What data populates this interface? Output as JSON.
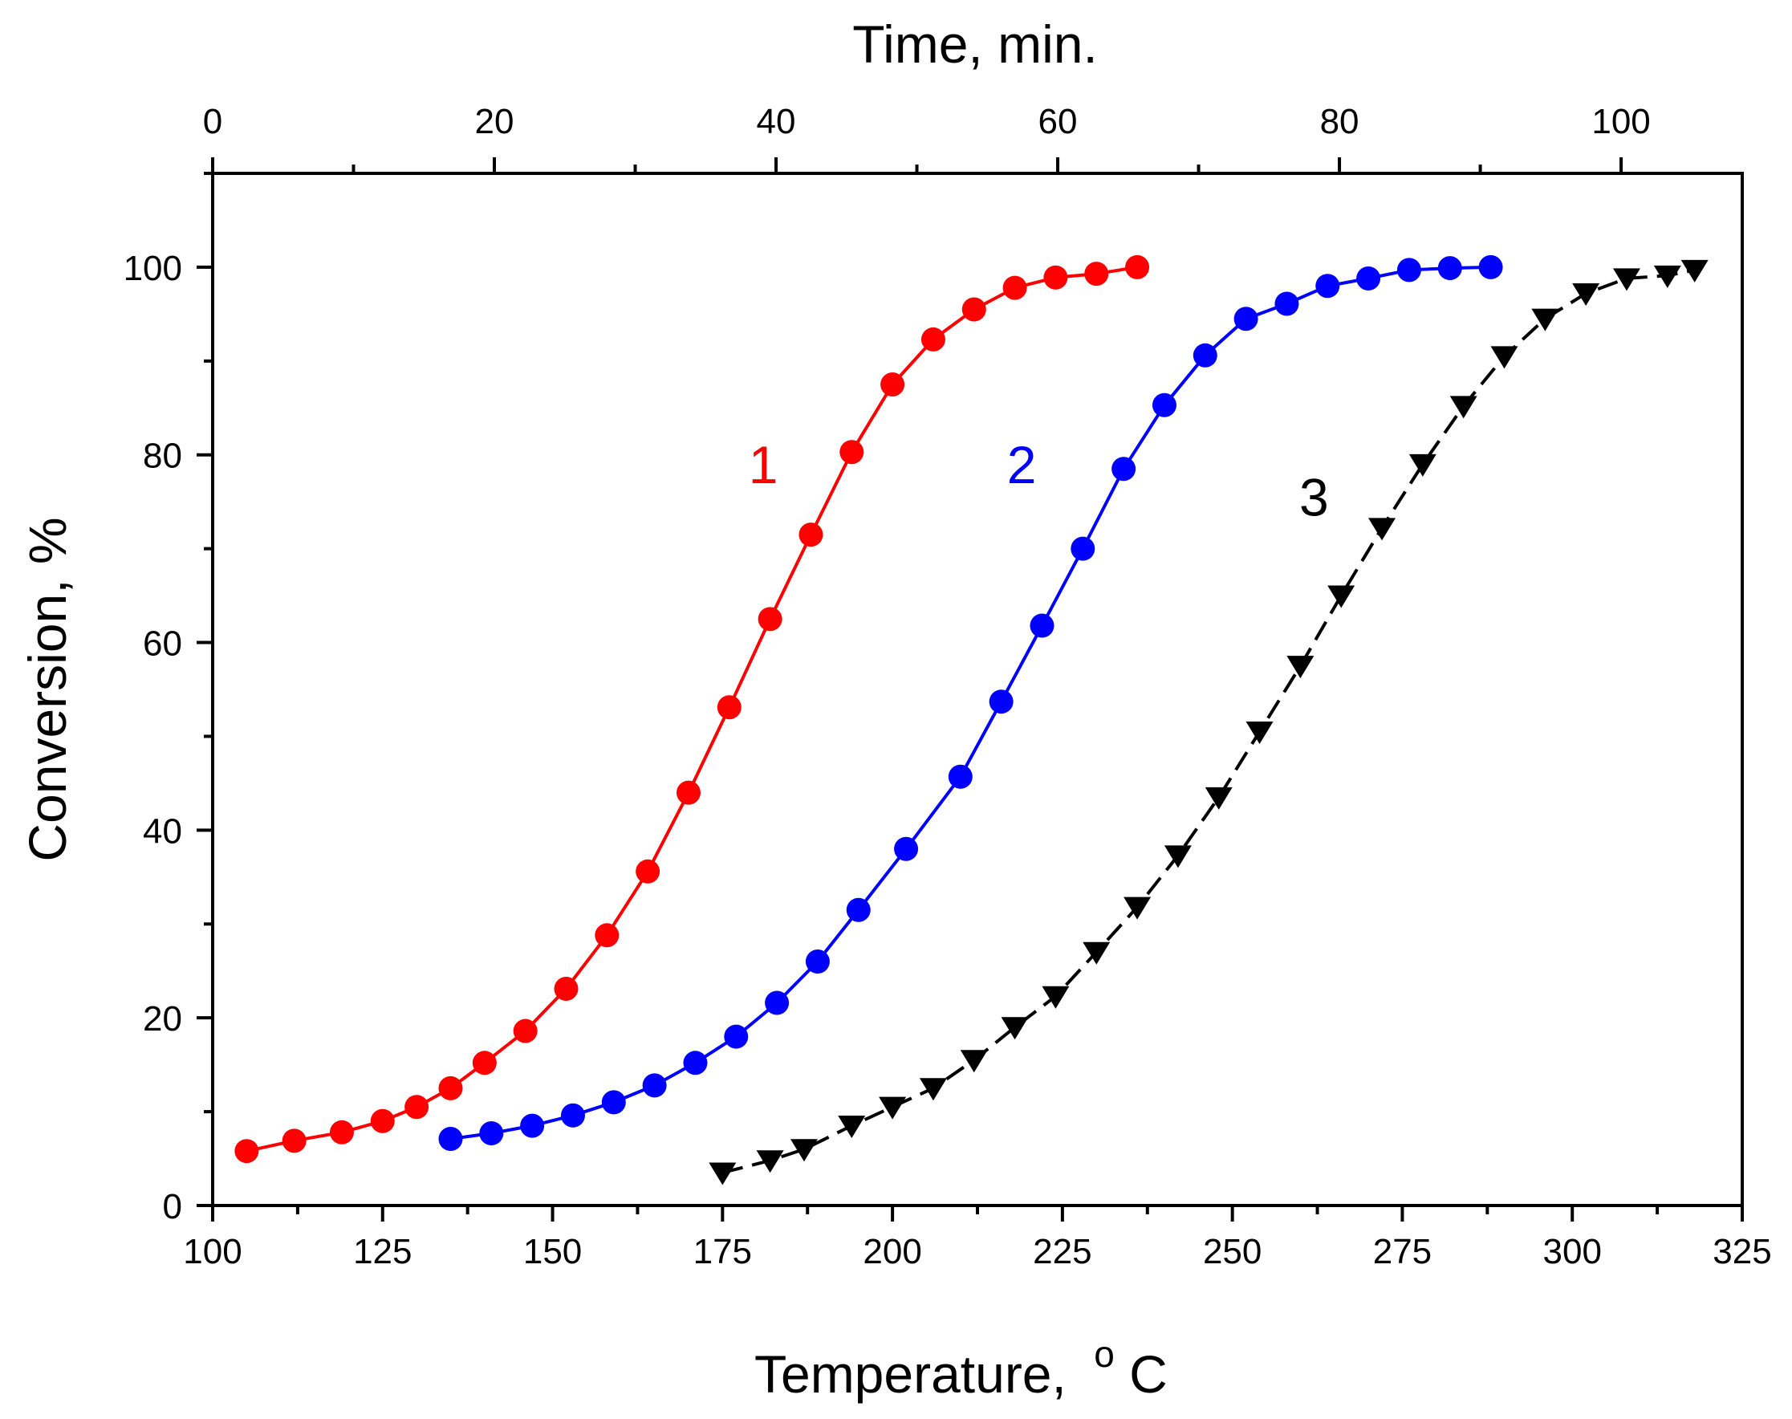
{
  "chart_data": {
    "type": "line",
    "xlabel": "Temperature,",
    "xlabel_unit_sup": "o",
    "xlabel_unit": "C",
    "x2label": "Time, min.",
    "ylabel": "Conversion, %",
    "xlim": [
      100,
      325
    ],
    "ylim": [
      0,
      110
    ],
    "x2lim": [
      0,
      108.6
    ],
    "x_ticks": [
      100,
      125,
      150,
      175,
      200,
      225,
      250,
      275,
      300,
      325
    ],
    "x_tick_labels": [
      "100",
      "125",
      "150",
      "175",
      "200",
      "225",
      "250",
      "275",
      "300",
      "325"
    ],
    "x2_ticks": [
      0,
      20,
      40,
      60,
      80,
      100
    ],
    "x2_tick_labels": [
      "0",
      "20",
      "40",
      "60",
      "80",
      "100"
    ],
    "y_ticks": [
      0,
      20,
      40,
      60,
      80,
      100
    ],
    "y_tick_labels": [
      "0",
      "20",
      "40",
      "60",
      "80",
      "100"
    ],
    "grid": false,
    "series": [
      {
        "name": "1",
        "color": "#ff0000",
        "marker": "circle",
        "line": "solid",
        "label_pos": [
          181,
          77
        ],
        "x": [
          105,
          112,
          119,
          125,
          130,
          135,
          140,
          146,
          152,
          158,
          164,
          170,
          176,
          182,
          188,
          194,
          200,
          206,
          212,
          218,
          224,
          230,
          236
        ],
        "y": [
          5.8,
          6.9,
          7.8,
          9.0,
          10.5,
          12.5,
          15.2,
          18.6,
          23.1,
          28.8,
          35.6,
          44.0,
          53.1,
          62.5,
          71.5,
          80.3,
          87.5,
          92.3,
          95.5,
          97.8,
          98.9,
          99.3,
          100.0
        ]
      },
      {
        "name": "2",
        "color": "#0000ff",
        "marker": "circle",
        "line": "solid",
        "label_pos": [
          219,
          77
        ],
        "x": [
          135,
          141,
          147,
          153,
          159,
          165,
          171,
          177,
          183,
          189,
          195,
          202,
          210,
          216,
          222,
          228,
          234,
          240,
          246,
          252,
          258,
          264,
          270,
          276,
          282,
          288
        ],
        "y": [
          7.1,
          7.7,
          8.5,
          9.6,
          11.0,
          12.8,
          15.2,
          18.0,
          21.6,
          26.0,
          31.5,
          38.0,
          45.7,
          53.7,
          61.8,
          70.0,
          78.5,
          85.3,
          90.6,
          94.5,
          96.1,
          98.0,
          98.8,
          99.7,
          99.9,
          100.0
        ]
      },
      {
        "name": "3",
        "color": "#000000",
        "marker": "triangle-down",
        "line": "dashed",
        "label_pos": [
          262,
          73.5
        ],
        "x": [
          175,
          182,
          187,
          194,
          200,
          206,
          212,
          218,
          224,
          230,
          236,
          242,
          248,
          254,
          260,
          266,
          272,
          278,
          284,
          290,
          296,
          302,
          308,
          314,
          318
        ],
        "y": [
          3.5,
          4.8,
          6.0,
          8.5,
          10.5,
          12.5,
          15.5,
          19.0,
          22.3,
          27.0,
          31.8,
          37.3,
          43.5,
          50.5,
          57.5,
          65.0,
          72.2,
          79.0,
          85.2,
          90.5,
          94.5,
          97.2,
          98.8,
          99.1,
          99.7
        ]
      }
    ]
  }
}
